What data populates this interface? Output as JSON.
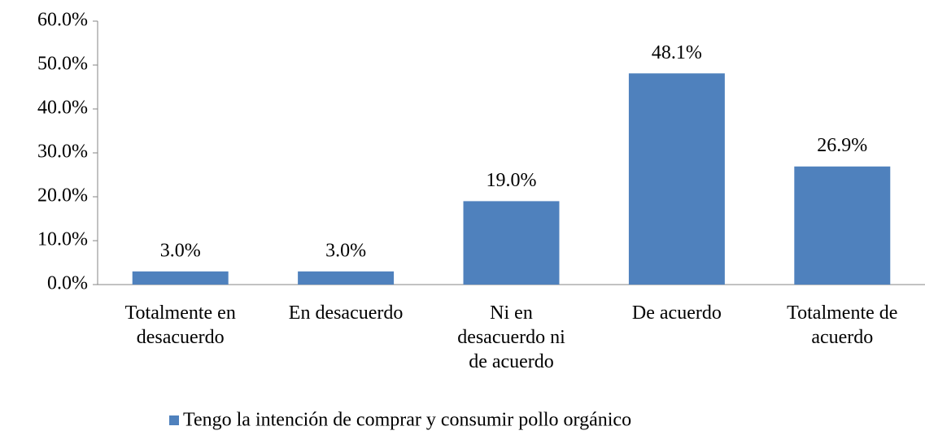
{
  "chart_data": {
    "type": "bar",
    "categories": [
      "Totalmente en\ndesacuerdo",
      "En desacuerdo",
      "Ni en\ndesacuerdo ni\nde acuerdo",
      "De acuerdo",
      "Totalmente de\nacuerdo"
    ],
    "series": [
      {
        "name": "Tengo la intención de comprar y consumir pollo orgánico",
        "color": "#4f81bd",
        "values": [
          3.0,
          3.0,
          19.0,
          48.1,
          26.9
        ],
        "value_labels": [
          "3.0%",
          "3.0%",
          "19.0%",
          "48.1%",
          "26.9%"
        ]
      }
    ],
    "ylim": [
      0,
      60
    ],
    "yticks": [
      {
        "value": 0,
        "label": "0.0%"
      },
      {
        "value": 10,
        "label": "10.0%"
      },
      {
        "value": 20,
        "label": "20.0%"
      },
      {
        "value": 30,
        "label": "30.0%"
      },
      {
        "value": 40,
        "label": "40.0%"
      },
      {
        "value": 50,
        "label": "50.0%"
      },
      {
        "value": 60,
        "label": "60.0%"
      }
    ],
    "grid": false,
    "legend": "bottom"
  }
}
